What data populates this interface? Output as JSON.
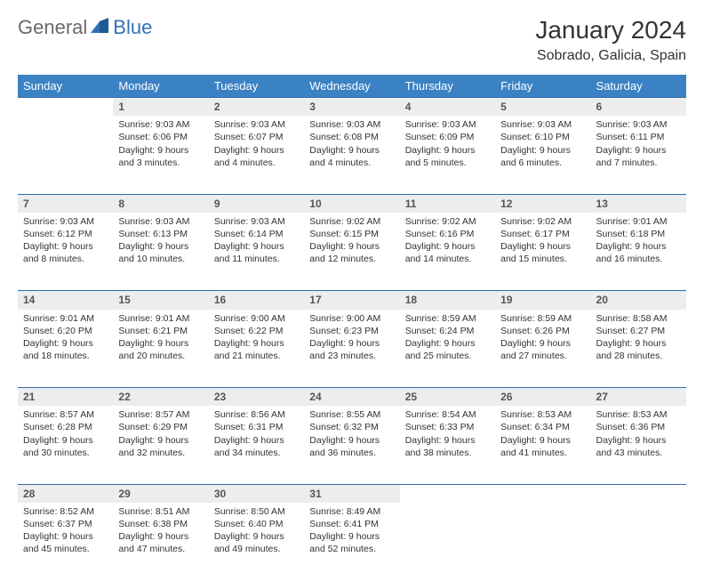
{
  "logo": {
    "text1": "General",
    "text2": "Blue"
  },
  "title": "January 2024",
  "location": "Sobrado, Galicia, Spain",
  "colors": {
    "header_bg": "#3b82c4",
    "header_text": "#ffffff",
    "daynum_bg": "#eceded",
    "row_border": "#2f6ca8",
    "body_text": "#333333",
    "logo_gray": "#6a6a6a",
    "logo_blue": "#2f71b8"
  },
  "daynames": [
    "Sunday",
    "Monday",
    "Tuesday",
    "Wednesday",
    "Thursday",
    "Friday",
    "Saturday"
  ],
  "weeks": [
    {
      "nums": [
        "",
        "1",
        "2",
        "3",
        "4",
        "5",
        "6"
      ],
      "cells": [
        null,
        {
          "sunrise": "9:03 AM",
          "sunset": "6:06 PM",
          "daylight": "9 hours and 3 minutes."
        },
        {
          "sunrise": "9:03 AM",
          "sunset": "6:07 PM",
          "daylight": "9 hours and 4 minutes."
        },
        {
          "sunrise": "9:03 AM",
          "sunset": "6:08 PM",
          "daylight": "9 hours and 4 minutes."
        },
        {
          "sunrise": "9:03 AM",
          "sunset": "6:09 PM",
          "daylight": "9 hours and 5 minutes."
        },
        {
          "sunrise": "9:03 AM",
          "sunset": "6:10 PM",
          "daylight": "9 hours and 6 minutes."
        },
        {
          "sunrise": "9:03 AM",
          "sunset": "6:11 PM",
          "daylight": "9 hours and 7 minutes."
        }
      ]
    },
    {
      "nums": [
        "7",
        "8",
        "9",
        "10",
        "11",
        "12",
        "13"
      ],
      "cells": [
        {
          "sunrise": "9:03 AM",
          "sunset": "6:12 PM",
          "daylight": "9 hours and 8 minutes."
        },
        {
          "sunrise": "9:03 AM",
          "sunset": "6:13 PM",
          "daylight": "9 hours and 10 minutes."
        },
        {
          "sunrise": "9:03 AM",
          "sunset": "6:14 PM",
          "daylight": "9 hours and 11 minutes."
        },
        {
          "sunrise": "9:02 AM",
          "sunset": "6:15 PM",
          "daylight": "9 hours and 12 minutes."
        },
        {
          "sunrise": "9:02 AM",
          "sunset": "6:16 PM",
          "daylight": "9 hours and 14 minutes."
        },
        {
          "sunrise": "9:02 AM",
          "sunset": "6:17 PM",
          "daylight": "9 hours and 15 minutes."
        },
        {
          "sunrise": "9:01 AM",
          "sunset": "6:18 PM",
          "daylight": "9 hours and 16 minutes."
        }
      ]
    },
    {
      "nums": [
        "14",
        "15",
        "16",
        "17",
        "18",
        "19",
        "20"
      ],
      "cells": [
        {
          "sunrise": "9:01 AM",
          "sunset": "6:20 PM",
          "daylight": "9 hours and 18 minutes."
        },
        {
          "sunrise": "9:01 AM",
          "sunset": "6:21 PM",
          "daylight": "9 hours and 20 minutes."
        },
        {
          "sunrise": "9:00 AM",
          "sunset": "6:22 PM",
          "daylight": "9 hours and 21 minutes."
        },
        {
          "sunrise": "9:00 AM",
          "sunset": "6:23 PM",
          "daylight": "9 hours and 23 minutes."
        },
        {
          "sunrise": "8:59 AM",
          "sunset": "6:24 PM",
          "daylight": "9 hours and 25 minutes."
        },
        {
          "sunrise": "8:59 AM",
          "sunset": "6:26 PM",
          "daylight": "9 hours and 27 minutes."
        },
        {
          "sunrise": "8:58 AM",
          "sunset": "6:27 PM",
          "daylight": "9 hours and 28 minutes."
        }
      ]
    },
    {
      "nums": [
        "21",
        "22",
        "23",
        "24",
        "25",
        "26",
        "27"
      ],
      "cells": [
        {
          "sunrise": "8:57 AM",
          "sunset": "6:28 PM",
          "daylight": "9 hours and 30 minutes."
        },
        {
          "sunrise": "8:57 AM",
          "sunset": "6:29 PM",
          "daylight": "9 hours and 32 minutes."
        },
        {
          "sunrise": "8:56 AM",
          "sunset": "6:31 PM",
          "daylight": "9 hours and 34 minutes."
        },
        {
          "sunrise": "8:55 AM",
          "sunset": "6:32 PM",
          "daylight": "9 hours and 36 minutes."
        },
        {
          "sunrise": "8:54 AM",
          "sunset": "6:33 PM",
          "daylight": "9 hours and 38 minutes."
        },
        {
          "sunrise": "8:53 AM",
          "sunset": "6:34 PM",
          "daylight": "9 hours and 41 minutes."
        },
        {
          "sunrise": "8:53 AM",
          "sunset": "6:36 PM",
          "daylight": "9 hours and 43 minutes."
        }
      ]
    },
    {
      "nums": [
        "28",
        "29",
        "30",
        "31",
        "",
        "",
        ""
      ],
      "cells": [
        {
          "sunrise": "8:52 AM",
          "sunset": "6:37 PM",
          "daylight": "9 hours and 45 minutes."
        },
        {
          "sunrise": "8:51 AM",
          "sunset": "6:38 PM",
          "daylight": "9 hours and 47 minutes."
        },
        {
          "sunrise": "8:50 AM",
          "sunset": "6:40 PM",
          "daylight": "9 hours and 49 minutes."
        },
        {
          "sunrise": "8:49 AM",
          "sunset": "6:41 PM",
          "daylight": "9 hours and 52 minutes."
        },
        null,
        null,
        null
      ]
    }
  ],
  "labels": {
    "sunrise": "Sunrise: ",
    "sunset": "Sunset: ",
    "daylight": "Daylight: "
  }
}
